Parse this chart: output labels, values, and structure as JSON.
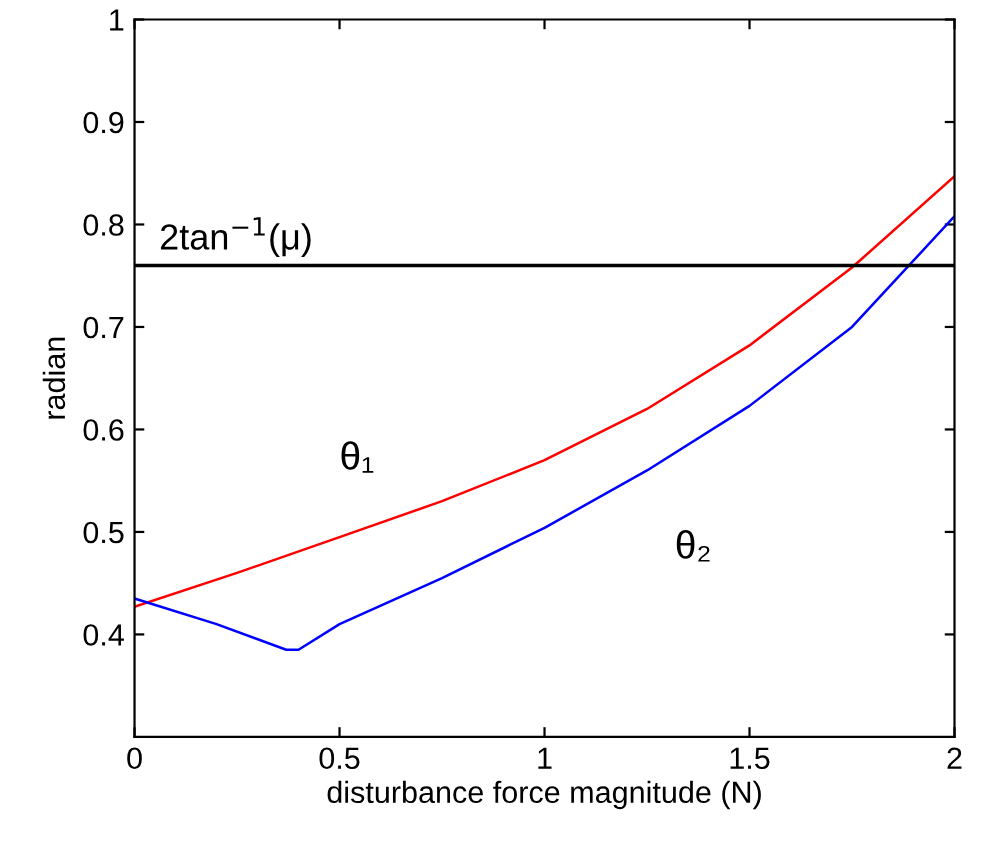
{
  "chart_data": {
    "type": "line",
    "xlabel": "disturbance force magnitude (N)",
    "ylabel": "radian",
    "xlim": [
      0,
      2
    ],
    "xticks": [
      0,
      0.5,
      1,
      1.5,
      2
    ],
    "ylim": [
      0.3,
      1
    ],
    "yticks": [
      0.4,
      0.5,
      0.6,
      0.7,
      0.8,
      0.9,
      1
    ],
    "grid": false,
    "marker": "none",
    "line_style": "solid",
    "series": [
      {
        "name": "θ₁",
        "color": "#ff0000",
        "x": [
          0,
          0.25,
          0.5,
          0.75,
          1,
          1.25,
          1.5,
          1.75,
          2
        ],
        "values": [
          0.427,
          0.46,
          0.495,
          0.53,
          0.57,
          0.62,
          0.682,
          0.758,
          0.847
        ]
      },
      {
        "name": "θ₂",
        "color": "#0000ff",
        "x": [
          0,
          0.2,
          0.37,
          0.4,
          0.5,
          0.75,
          1,
          1.25,
          1.5,
          1.75,
          2
        ],
        "values": [
          0.435,
          0.41,
          0.385,
          0.385,
          0.41,
          0.455,
          0.504,
          0.56,
          0.623,
          0.7,
          0.808
        ]
      }
    ],
    "ref_lines": [
      {
        "axis": "y",
        "value": 0.76,
        "label": "2tan$^{−1}$(μ)",
        "color": "#000000"
      }
    ]
  }
}
